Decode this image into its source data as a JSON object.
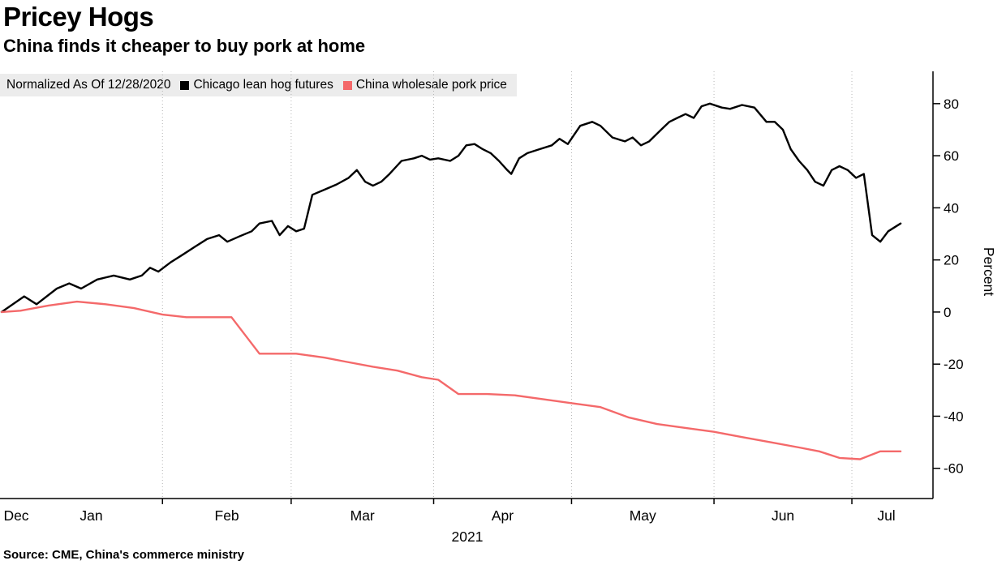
{
  "header": {
    "title": "Pricey Hogs",
    "subtitle": "China finds it cheaper to buy pork at home"
  },
  "legend": {
    "note": "Normalized As Of 12/28/2020"
  },
  "source": "Source: CME, China's commerce ministry",
  "chart_data": {
    "type": "line",
    "title": "Pricey Hogs",
    "subtitle": "China finds it cheaper to buy pork at home",
    "note": "Normalized As Of 12/28/2020",
    "xlabel": "2021",
    "ylabel": "Percent",
    "x_unit": "days since 2020-12-28",
    "x_domain": [
      0,
      200
    ],
    "ylim": [
      -71.6,
      92.4
    ],
    "y_ticks": [
      -60,
      -40,
      -20,
      0,
      20,
      40,
      60,
      80
    ],
    "grid": "vertical-dotted",
    "legend_position": "top-left",
    "months": [
      {
        "label": "Dec",
        "start_day": 0
      },
      {
        "label": "Jan",
        "start_day": 4
      },
      {
        "label": "Feb",
        "start_day": 35
      },
      {
        "label": "Mar",
        "start_day": 63
      },
      {
        "label": "Apr",
        "start_day": 94
      },
      {
        "label": "May",
        "start_day": 124
      },
      {
        "label": "Jun",
        "start_day": 155
      },
      {
        "label": "Jul",
        "start_day": 185
      }
    ],
    "series": [
      {
        "name": "Chicago lean hog futures",
        "color": "#000000",
        "width": 2.4,
        "x": [
          0,
          4.9,
          7.6,
          12,
          14.7,
          17.3,
          20.8,
          24.4,
          27.9,
          30.5,
          32.3,
          34.1,
          36.7,
          39.4,
          42,
          44.7,
          47.3,
          49.1,
          51.7,
          54.4,
          56.1,
          58.8,
          60.5,
          62.3,
          64.1,
          65.8,
          67.6,
          70.3,
          72.9,
          75.5,
          77.3,
          79.1,
          80.8,
          82.6,
          84.4,
          87,
          89.7,
          91.4,
          93.2,
          95,
          97.6,
          99.4,
          101.1,
          102.9,
          104.7,
          106.4,
          108.2,
          110,
          110.9,
          112.6,
          114.4,
          117,
          119.7,
          121.4,
          123.2,
          125.9,
          128.5,
          130.3,
          132.9,
          135.6,
          137.3,
          139.1,
          140.9,
          143.5,
          145.3,
          147,
          148.8,
          150.6,
          152.3,
          154.1,
          156.7,
          158.5,
          161.1,
          163.8,
          166.4,
          168.2,
          170,
          171.7,
          173.5,
          175.3,
          177,
          178.8,
          180.6,
          182.3,
          184.1,
          185.9,
          187.6,
          189.4,
          191.2,
          192.9,
          195.6
        ],
        "values": [
          0,
          6,
          3,
          9,
          11,
          9,
          12.5,
          14,
          12.5,
          14,
          17,
          15.5,
          19,
          22,
          25,
          28,
          29.5,
          27,
          29,
          31,
          34,
          35,
          29.5,
          33,
          31,
          32,
          45,
          47,
          49,
          51.5,
          54.5,
          50,
          48.5,
          50,
          53,
          58,
          59,
          60,
          58.5,
          59,
          58,
          60,
          64,
          64.5,
          62.5,
          61,
          58,
          54.5,
          53,
          59,
          61,
          62.5,
          64,
          66.5,
          64.5,
          71.5,
          73,
          71.5,
          67,
          65.5,
          67,
          64,
          65.5,
          70,
          73,
          74.5,
          76,
          74.5,
          79,
          80,
          78.5,
          78,
          79.5,
          78.5,
          73,
          73,
          70,
          62.5,
          58,
          54.5,
          50,
          48.5,
          54.5,
          56,
          54.5,
          51.5,
          53,
          29.5,
          27,
          31,
          34
        ]
      },
      {
        "name": "China wholesale pork price",
        "color": "#f4696a",
        "width": 2.4,
        "x": [
          0,
          4.1,
          10.2,
          16.4,
          22.6,
          28.8,
          35,
          40.2,
          46.4,
          50,
          56.1,
          64.1,
          70.3,
          74.7,
          80.8,
          86.1,
          91.4,
          95,
          99.4,
          105.6,
          111.7,
          117.9,
          124.1,
          130.3,
          136.5,
          142.6,
          148.8,
          155,
          161.1,
          167.3,
          173.5,
          177.9,
          182.3,
          186.8,
          191.2,
          195.6
        ],
        "values": [
          0,
          0.5,
          2.5,
          4,
          3,
          1.5,
          -1,
          -2,
          -2,
          -2,
          -16,
          -16,
          -17.5,
          -19,
          -21,
          -22.5,
          -25,
          -26,
          -31.5,
          -31.5,
          -32,
          -33.5,
          -35,
          -36.5,
          -40.5,
          -43,
          -44.5,
          -46,
          -48,
          -50,
          -52,
          -53.5,
          -56,
          -56.5,
          -53.5,
          -53.5
        ]
      }
    ]
  }
}
